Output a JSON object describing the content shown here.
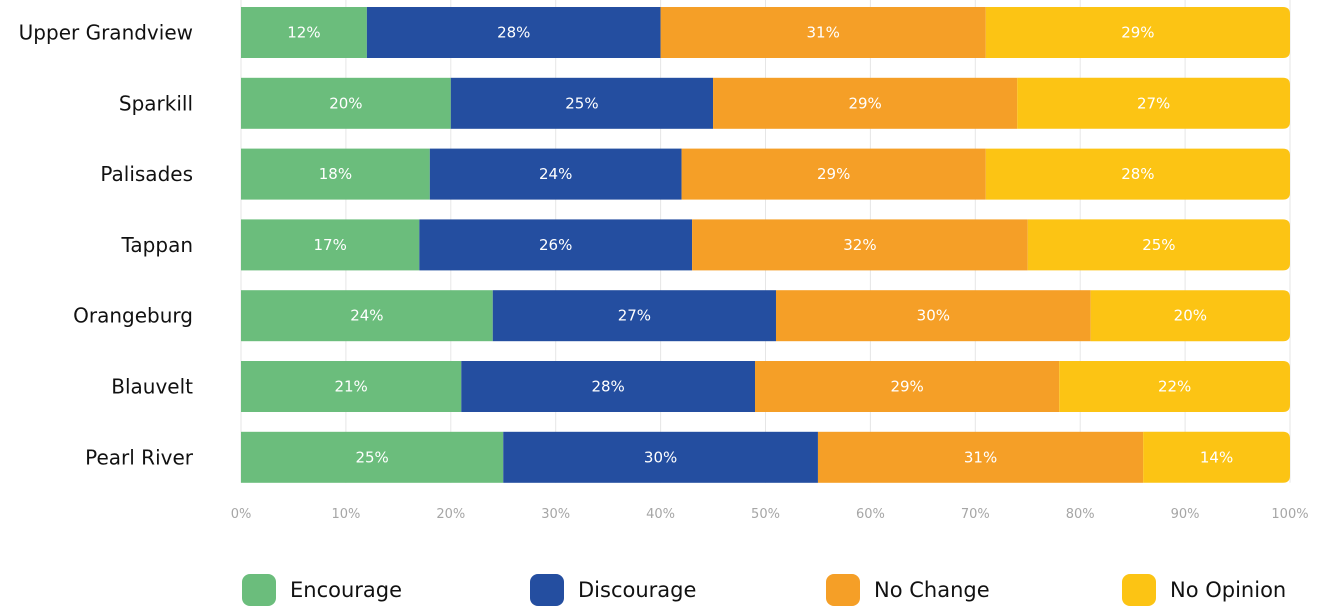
{
  "chart_data": {
    "type": "bar",
    "orientation": "horizontal",
    "stacked": true,
    "categories": [
      "Upper Grandview",
      "Sparkill",
      "Palisades",
      "Tappan",
      "Orangeburg",
      "Blauvelt",
      "Pearl River"
    ],
    "series": [
      {
        "name": "Encourage",
        "color": "#6bbd7c",
        "values": [
          12,
          20,
          18,
          17,
          24,
          21,
          25
        ],
        "labels": [
          "12%",
          "20%",
          "18%",
          "17%",
          "24%",
          "21%",
          "25%"
        ]
      },
      {
        "name": "Discourage",
        "color": "#244ea0",
        "values": [
          28,
          25,
          24,
          26,
          27,
          28,
          30
        ],
        "labels": [
          "28%",
          "25%",
          "24%",
          "26%",
          "27%",
          "28%",
          "30%"
        ]
      },
      {
        "name": "No Change",
        "color": "#f59f27",
        "values": [
          31,
          29,
          29,
          32,
          30,
          29,
          31
        ],
        "labels": [
          "31%",
          "29%",
          "29%",
          "32%",
          "30%",
          "29%",
          "31%"
        ]
      },
      {
        "name": "No Opinion",
        "color": "#fcc414",
        "values": [
          29,
          27,
          28,
          25,
          20,
          22,
          14
        ],
        "labels": [
          "29%",
          "27%",
          "28%",
          "25%",
          "20%",
          "22%",
          "14%"
        ]
      }
    ],
    "xlim": [
      0,
      100
    ],
    "xticks": [
      "0%",
      "10%",
      "20%",
      "30%",
      "40%",
      "50%",
      "60%",
      "70%",
      "80%",
      "90%",
      "100%"
    ],
    "grid": true,
    "legend_position": "bottom"
  }
}
